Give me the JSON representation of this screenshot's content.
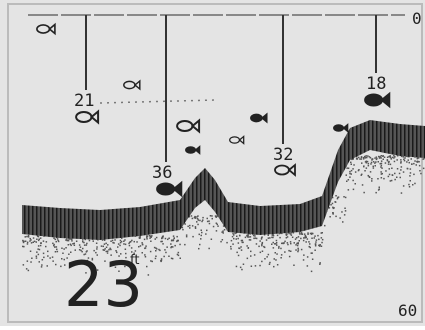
{
  "scale": {
    "top": "0",
    "bottom": "60"
  },
  "depth": {
    "value": "23",
    "unit": "ft"
  },
  "fish": [
    {
      "label": "21"
    },
    {
      "label": "36"
    },
    {
      "label": "32"
    },
    {
      "label": "18"
    }
  ]
}
